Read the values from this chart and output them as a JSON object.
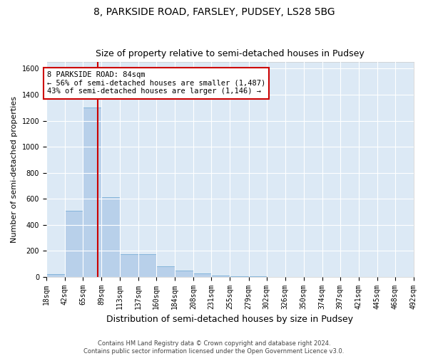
{
  "title_line1": "8, PARKSIDE ROAD, FARSLEY, PUDSEY, LS28 5BG",
  "title_line2": "Size of property relative to semi-detached houses in Pudsey",
  "xlabel": "Distribution of semi-detached houses by size in Pudsey",
  "ylabel": "Number of semi-detached properties",
  "footnote": "Contains HM Land Registry data © Crown copyright and database right 2024.\nContains public sector information licensed under the Open Government Licence v3.0.",
  "bin_edges": [
    18,
    42,
    65,
    89,
    113,
    137,
    160,
    184,
    208,
    231,
    255,
    279,
    302,
    326,
    350,
    374,
    397,
    421,
    445,
    468,
    492
  ],
  "bar_heights": [
    20,
    510,
    1300,
    610,
    175,
    175,
    80,
    48,
    28,
    8,
    3,
    2,
    1,
    1,
    0,
    0,
    0,
    0,
    0,
    0
  ],
  "bar_color": "#b8d0ea",
  "bar_edge_color": "#7aaed6",
  "vline_x": 84,
  "vline_color": "#cc0000",
  "annotation_text": "8 PARKSIDE ROAD: 84sqm\n← 56% of semi-detached houses are smaller (1,487)\n43% of semi-detached houses are larger (1,146) →",
  "annotation_box_color": "#ffffff",
  "annotation_box_edge": "#cc0000",
  "ylim": [
    0,
    1650
  ],
  "yticks": [
    0,
    200,
    400,
    600,
    800,
    1000,
    1200,
    1400,
    1600
  ],
  "bg_color": "#dce9f5",
  "grid_color": "#ffffff",
  "fig_bg_color": "#ffffff",
  "title_fontsize": 10,
  "subtitle_fontsize": 9,
  "ylabel_fontsize": 8,
  "xlabel_fontsize": 9,
  "tick_fontsize": 7,
  "annot_fontsize": 7.5,
  "footnote_fontsize": 6
}
